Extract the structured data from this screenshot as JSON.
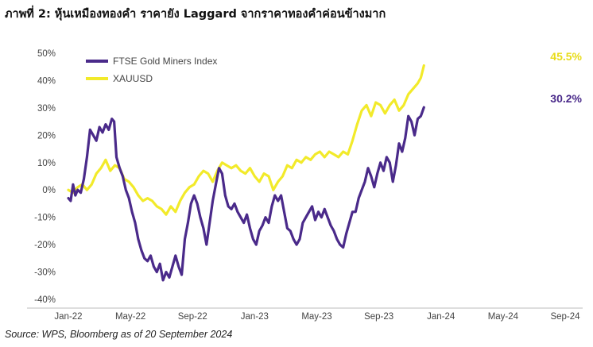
{
  "title": "ภาพที่ 2: หุ้นเหมืองทองคำ ราคายัง Laggard จากราคาทองคำค่อนข้างมาก",
  "source": "Source: WPS, Bloomberg as of 20 September 2024",
  "colors": {
    "gold_miners": "#4a2a8a",
    "xauusd": "#f2ea2a",
    "gold_label": "#e8dc1a"
  },
  "chart_data": {
    "type": "line",
    "x_labels": [
      "Jan-22",
      "May-22",
      "Sep-22",
      "Jan-23",
      "May-23",
      "Sep-23",
      "Jan-24",
      "May-24",
      "Sep-24"
    ],
    "y_labels": [
      "50%",
      "40%",
      "30%",
      "20%",
      "10%",
      "0%",
      "-10%",
      "-20%",
      "-30%",
      "-40%"
    ],
    "ylim": [
      -40,
      50
    ],
    "series": [
      {
        "name": "FTSE Gold Miners Index",
        "end_label": "30.2%",
        "points": [
          [
            0,
            -3
          ],
          [
            0.15,
            -4
          ],
          [
            0.3,
            2
          ],
          [
            0.45,
            -2
          ],
          [
            0.6,
            0
          ],
          [
            0.8,
            -1
          ],
          [
            1,
            4
          ],
          [
            1.2,
            12
          ],
          [
            1.4,
            22
          ],
          [
            1.6,
            20
          ],
          [
            1.8,
            18
          ],
          [
            2,
            23
          ],
          [
            2.2,
            21
          ],
          [
            2.4,
            24
          ],
          [
            2.6,
            22
          ],
          [
            2.8,
            26
          ],
          [
            2.95,
            25
          ],
          [
            3.1,
            12
          ],
          [
            3.3,
            8
          ],
          [
            3.5,
            5
          ],
          [
            3.7,
            0
          ],
          [
            3.9,
            -3
          ],
          [
            4.1,
            -8
          ],
          [
            4.3,
            -12
          ],
          [
            4.5,
            -18
          ],
          [
            4.7,
            -22
          ],
          [
            4.9,
            -25
          ],
          [
            5.1,
            -26
          ],
          [
            5.3,
            -24
          ],
          [
            5.5,
            -28
          ],
          [
            5.7,
            -30
          ],
          [
            5.9,
            -27
          ],
          [
            6.1,
            -33
          ],
          [
            6.3,
            -30
          ],
          [
            6.5,
            -32
          ],
          [
            6.7,
            -28
          ],
          [
            6.9,
            -24
          ],
          [
            7.1,
            -28
          ],
          [
            7.3,
            -31
          ],
          [
            7.5,
            -18
          ],
          [
            7.7,
            -12
          ],
          [
            7.9,
            -5
          ],
          [
            8.1,
            -2
          ],
          [
            8.3,
            -5
          ],
          [
            8.5,
            -10
          ],
          [
            8.7,
            -14
          ],
          [
            8.9,
            -20
          ],
          [
            9.1,
            -12
          ],
          [
            9.3,
            -4
          ],
          [
            9.5,
            2
          ],
          [
            9.7,
            8
          ],
          [
            9.9,
            6
          ],
          [
            10.1,
            -2
          ],
          [
            10.3,
            -6
          ],
          [
            10.5,
            -7
          ],
          [
            10.7,
            -5
          ],
          [
            10.9,
            -8
          ],
          [
            11.1,
            -10
          ],
          [
            11.3,
            -12
          ],
          [
            11.5,
            -9
          ],
          [
            11.7,
            -14
          ],
          [
            11.9,
            -18
          ],
          [
            12.1,
            -20
          ],
          [
            12.3,
            -15
          ],
          [
            12.5,
            -13
          ],
          [
            12.7,
            -10
          ],
          [
            12.9,
            -12
          ],
          [
            13.1,
            -6
          ],
          [
            13.3,
            -2
          ],
          [
            13.5,
            -4
          ],
          [
            13.7,
            -2
          ],
          [
            13.9,
            -8
          ],
          [
            14.1,
            -14
          ],
          [
            14.3,
            -15
          ],
          [
            14.5,
            -18
          ],
          [
            14.7,
            -20
          ],
          [
            14.9,
            -18
          ],
          [
            15.1,
            -12
          ],
          [
            15.3,
            -10
          ],
          [
            15.5,
            -8
          ],
          [
            15.7,
            -6
          ],
          [
            15.9,
            -11
          ],
          [
            16.1,
            -8
          ],
          [
            16.3,
            -10
          ],
          [
            16.5,
            -7
          ],
          [
            16.7,
            -10
          ],
          [
            16.9,
            -13
          ],
          [
            17.1,
            -15
          ],
          [
            17.3,
            -18
          ],
          [
            17.5,
            -20
          ],
          [
            17.7,
            -21
          ],
          [
            17.9,
            -16
          ],
          [
            18.1,
            -12
          ],
          [
            18.3,
            -8
          ],
          [
            18.5,
            -8
          ],
          [
            18.7,
            -3
          ],
          [
            18.9,
            0
          ],
          [
            19.1,
            3
          ],
          [
            19.3,
            8
          ],
          [
            19.5,
            5
          ],
          [
            19.7,
            1
          ],
          [
            19.9,
            6
          ],
          [
            20.1,
            10
          ],
          [
            20.3,
            7
          ],
          [
            20.5,
            12
          ],
          [
            20.7,
            10
          ],
          [
            20.9,
            3
          ],
          [
            21.1,
            9
          ],
          [
            21.3,
            17
          ],
          [
            21.5,
            14
          ],
          [
            21.7,
            19
          ],
          [
            21.9,
            27
          ],
          [
            22.1,
            25
          ],
          [
            22.3,
            20
          ],
          [
            22.5,
            26
          ],
          [
            22.7,
            27
          ],
          [
            22.9,
            30.2
          ]
        ]
      },
      {
        "name": "XAUUSD",
        "end_label": "45.5%",
        "points": [
          [
            0,
            0
          ],
          [
            0.3,
            -1
          ],
          [
            0.6,
            1
          ],
          [
            0.9,
            2
          ],
          [
            1.2,
            0
          ],
          [
            1.5,
            2
          ],
          [
            1.8,
            6
          ],
          [
            2.1,
            8
          ],
          [
            2.4,
            11
          ],
          [
            2.7,
            7
          ],
          [
            3,
            9
          ],
          [
            3.3,
            8
          ],
          [
            3.6,
            4
          ],
          [
            3.9,
            3
          ],
          [
            4.2,
            1
          ],
          [
            4.5,
            -2
          ],
          [
            4.8,
            -4
          ],
          [
            5.1,
            -3
          ],
          [
            5.4,
            -4
          ],
          [
            5.7,
            -6
          ],
          [
            6,
            -7
          ],
          [
            6.3,
            -9
          ],
          [
            6.6,
            -6
          ],
          [
            6.9,
            -8
          ],
          [
            7.2,
            -4
          ],
          [
            7.5,
            -1
          ],
          [
            7.8,
            1
          ],
          [
            8.1,
            2
          ],
          [
            8.4,
            5
          ],
          [
            8.7,
            7
          ],
          [
            9,
            6
          ],
          [
            9.3,
            3
          ],
          [
            9.6,
            7
          ],
          [
            9.9,
            10
          ],
          [
            10.2,
            9
          ],
          [
            10.5,
            8
          ],
          [
            10.8,
            9
          ],
          [
            11.1,
            7
          ],
          [
            11.4,
            6
          ],
          [
            11.7,
            8
          ],
          [
            12,
            5
          ],
          [
            12.3,
            3
          ],
          [
            12.6,
            6
          ],
          [
            12.9,
            5
          ],
          [
            13.2,
            0
          ],
          [
            13.5,
            3
          ],
          [
            13.8,
            5
          ],
          [
            14.1,
            9
          ],
          [
            14.4,
            8
          ],
          [
            14.7,
            11
          ],
          [
            15,
            10
          ],
          [
            15.3,
            12
          ],
          [
            15.6,
            11
          ],
          [
            15.9,
            13
          ],
          [
            16.2,
            14
          ],
          [
            16.5,
            12
          ],
          [
            16.8,
            14
          ],
          [
            17.1,
            13
          ],
          [
            17.4,
            12
          ],
          [
            17.7,
            14
          ],
          [
            18,
            13
          ],
          [
            18.3,
            18
          ],
          [
            18.6,
            24
          ],
          [
            18.9,
            29
          ],
          [
            19.2,
            31
          ],
          [
            19.5,
            27
          ],
          [
            19.8,
            32
          ],
          [
            20.1,
            31
          ],
          [
            20.4,
            28
          ],
          [
            20.7,
            31
          ],
          [
            21,
            33
          ],
          [
            21.3,
            29
          ],
          [
            21.6,
            31
          ],
          [
            21.9,
            35
          ],
          [
            22.2,
            37
          ],
          [
            22.5,
            39
          ],
          [
            22.7,
            41
          ],
          [
            22.9,
            45.5
          ]
        ]
      }
    ]
  }
}
